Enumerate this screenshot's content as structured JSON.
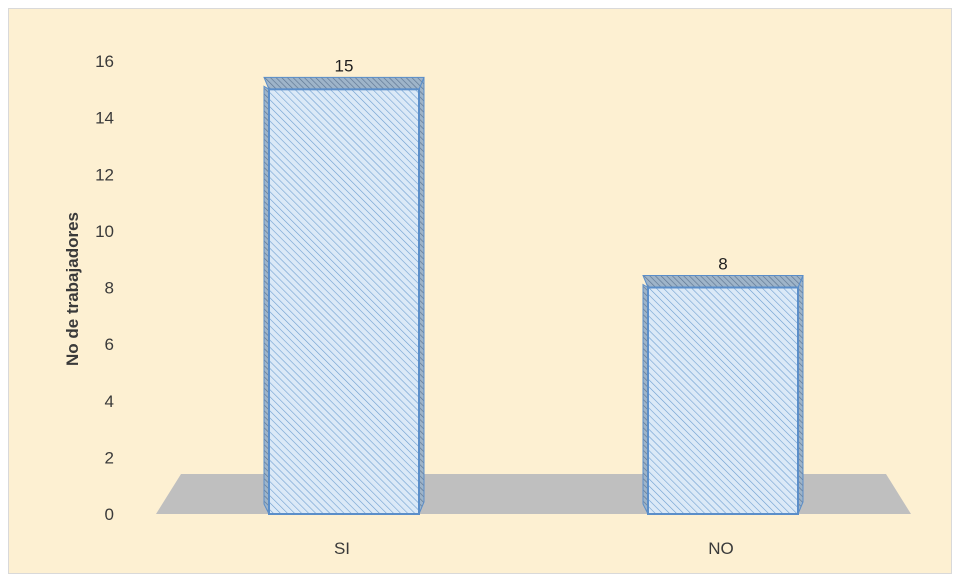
{
  "chart_data": {
    "type": "bar",
    "title": "",
    "xlabel": "",
    "ylabel": "No de trabajadores",
    "categories": [
      "SI",
      "NO"
    ],
    "values": [
      15,
      8
    ],
    "ylim": [
      0,
      16
    ],
    "yticks": [
      "0",
      "2",
      "4",
      "6",
      "8",
      "10",
      "12",
      "14",
      "16"
    ],
    "data_labels": [
      "15",
      "8"
    ],
    "grid": false,
    "legend": "none",
    "three_d": true,
    "colors": {
      "background": "#fdf0d2",
      "bar_fill": "#dbe9f7",
      "bar_hatch": "#6f9fd0",
      "bar_border": "#5b8ec9",
      "bar_top": "#7a8ea4",
      "floor": "#bfbfbf"
    }
  }
}
